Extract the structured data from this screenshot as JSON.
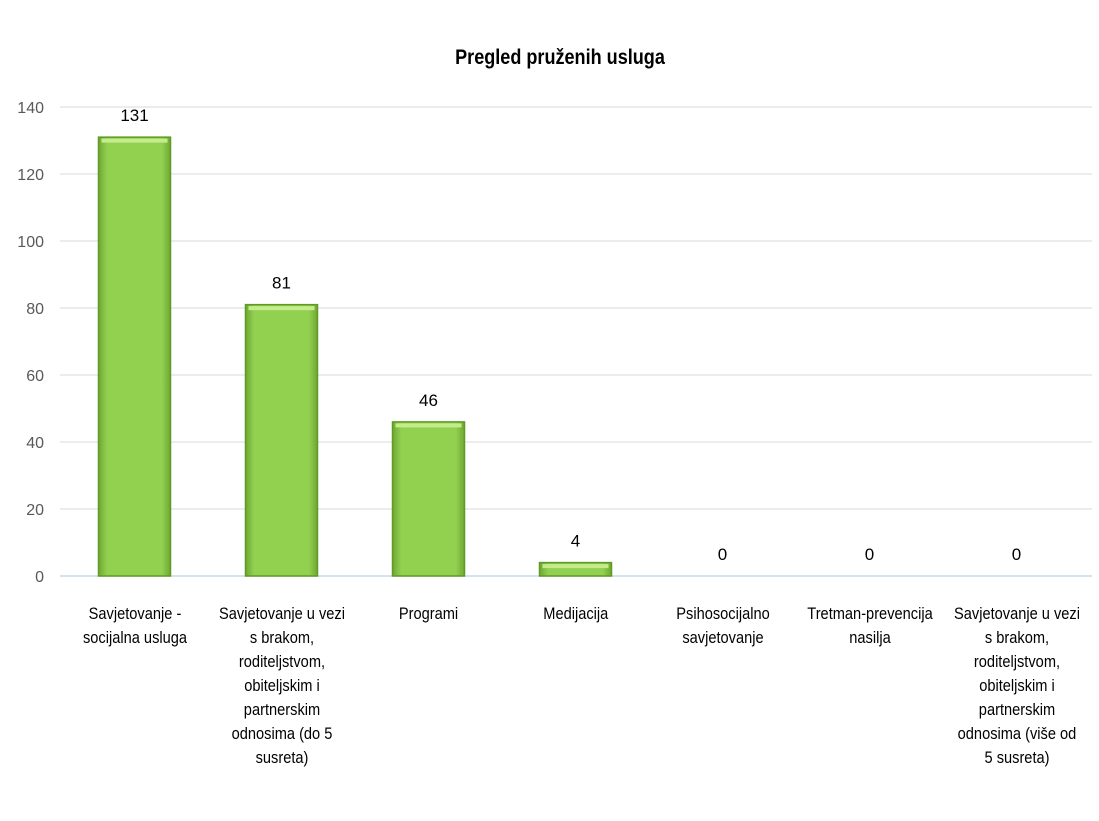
{
  "chart_data": {
    "type": "bar",
    "title": "Pregled pruženih usluga",
    "xlabel": "",
    "ylabel": "",
    "categories": [
      "Savjetovanje - socijalna usluga",
      "Savjetovanje u vezi s brakom, roditeljstvom, obiteljskim i partnerskim odnosima (do 5 susreta)",
      "Programi",
      "Medijacija",
      "Psihosocijalno savjetovanje",
      "Tretman-prevencija nasilja",
      "Savjetovanje u vezi s brakom, roditeljstvom, obiteljskim i partnerskim odnosima (više od 5 susreta)"
    ],
    "values": [
      131,
      81,
      46,
      4,
      0,
      0,
      0
    ],
    "data_labels": [
      "131",
      "81",
      "46",
      "4",
      "0",
      "0",
      "0"
    ],
    "ylim": [
      0,
      140
    ],
    "yticks": [
      "0",
      "20",
      "40",
      "60",
      "80",
      "100",
      "120",
      "140"
    ],
    "grid": true,
    "legend": "none",
    "colors": {
      "bar_fill": "#92d050",
      "bar_edge": "#5f9a24",
      "bar_highlight": "#c4ec8c",
      "gridline": "#d9d9d9",
      "axis_line": "#c6d9ee",
      "tick_label": "#595959"
    }
  }
}
